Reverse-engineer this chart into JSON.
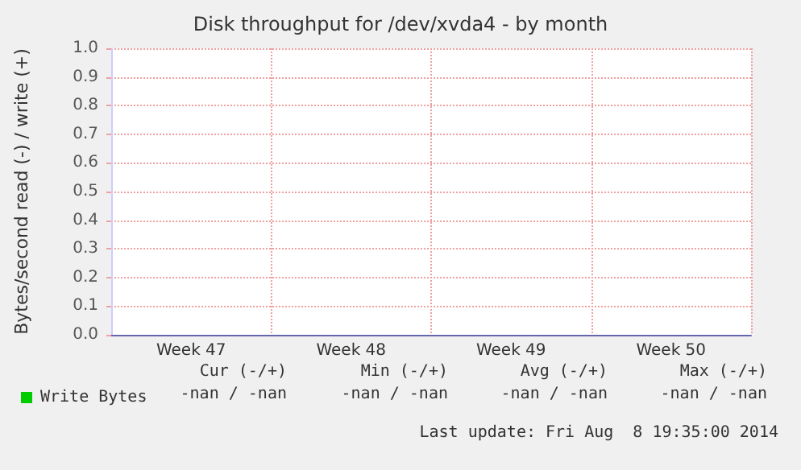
{
  "chart_data": {
    "type": "line",
    "title": "Disk throughput for /dev/xvda4 - by month",
    "ylabel": "Bytes/second read (-) / write (+)",
    "categories": [
      "Week 47",
      "Week 48",
      "Week 49",
      "Week 50"
    ],
    "series": [
      {
        "name": "Write Bytes",
        "color": "#00cc00",
        "values": [
          null,
          null,
          null,
          null
        ]
      }
    ],
    "ylim": [
      0,
      1
    ],
    "yticks": [
      {
        "value": 0,
        "label": "0.0"
      },
      {
        "value": 0.1,
        "label": "0.1"
      },
      {
        "value": 0.2,
        "label": "0.2"
      },
      {
        "value": 0.3,
        "label": "0.3"
      },
      {
        "value": 0.4,
        "label": "0.4"
      },
      {
        "value": 0.5,
        "label": "0.5"
      },
      {
        "value": 0.6,
        "label": "0.6"
      },
      {
        "value": 0.7,
        "label": "0.7"
      },
      {
        "value": 0.8,
        "label": "0.8"
      },
      {
        "value": 0.9,
        "label": "0.9"
      },
      {
        "value": 1,
        "label": "1.0"
      }
    ],
    "grid": true,
    "legend": "bottom left",
    "annotations": [
      "Cur (-/+)",
      "Min (-/+)",
      "Avg (-/+)",
      "Max (-/+)",
      "-nan / -nan",
      "-nan / -nan",
      "-nan / -nan",
      "-nan / -nan",
      "Last update: Fri Aug  8 19:35:00 2014"
    ]
  }
}
